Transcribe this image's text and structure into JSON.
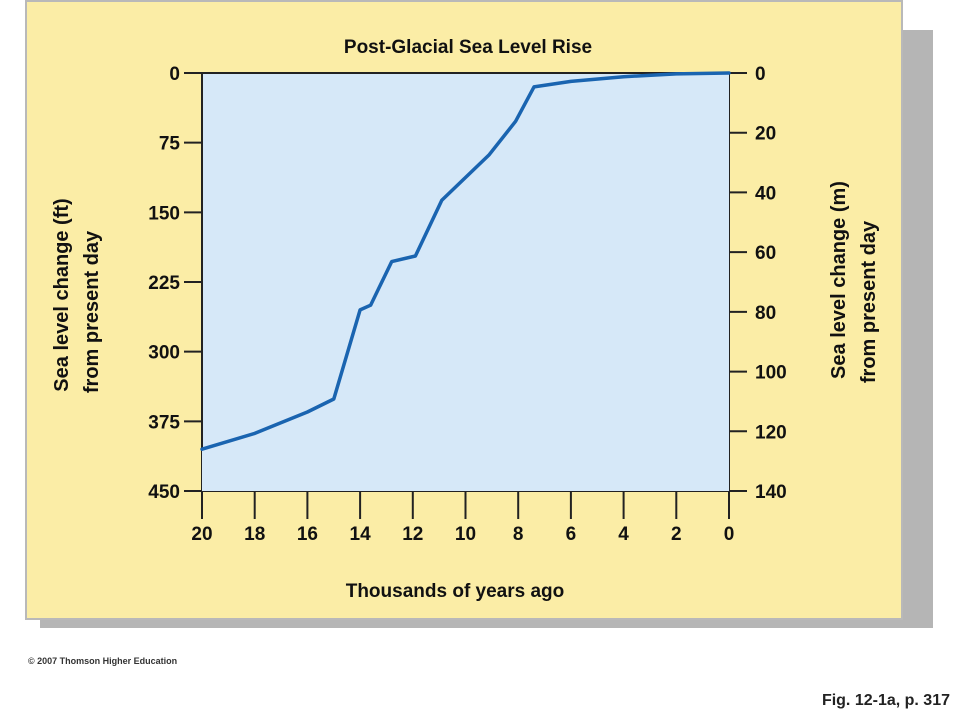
{
  "chart_data": {
    "type": "area",
    "title": "Post-Glacial Sea Level Rise",
    "xlabel": "Thousands of years ago",
    "ylabel_left": "Sea level change (ft) from present day",
    "ylabel_left_lines": [
      "Sea level change (ft)",
      "from present day"
    ],
    "ylabel_right": "Sea level change (m) from present day",
    "ylabel_right_lines": [
      "Sea level change (m)",
      "from present day"
    ],
    "x_ticks": [
      "20",
      "18",
      "16",
      "14",
      "12",
      "10",
      "8",
      "6",
      "4",
      "2",
      "0"
    ],
    "x_tick_values": [
      20,
      18,
      16,
      14,
      12,
      10,
      8,
      6,
      4,
      2,
      0
    ],
    "y_left_ticks": [
      "0",
      "75",
      "150",
      "225",
      "300",
      "375",
      "450"
    ],
    "y_left_tick_values": [
      0,
      75,
      150,
      225,
      300,
      375,
      450
    ],
    "y_right_ticks": [
      "0",
      "20",
      "40",
      "60",
      "80",
      "100",
      "120",
      "140"
    ],
    "y_right_tick_values": [
      0,
      20,
      40,
      60,
      80,
      100,
      120,
      140
    ],
    "xlim": [
      20,
      0
    ],
    "ylim_ft": [
      0,
      450
    ],
    "ylim_m": [
      0,
      140
    ],
    "area_fill": "#d6e8f8",
    "line_color": "#1a64b0",
    "series": [
      {
        "x": [
          20,
          18,
          16,
          15,
          14,
          13.6,
          12.8,
          11.9,
          10.9,
          9.1,
          8.1,
          7.4,
          6,
          4,
          2,
          0
        ],
        "y_ft": [
          405,
          388,
          365,
          351,
          255,
          250,
          203,
          197,
          137,
          88,
          52,
          15,
          9,
          4,
          1,
          0
        ]
      }
    ]
  },
  "footer": {
    "copyright": "© 2007 Thomson Higher Education",
    "figure": "Fig. 12-1a, p. 317"
  }
}
